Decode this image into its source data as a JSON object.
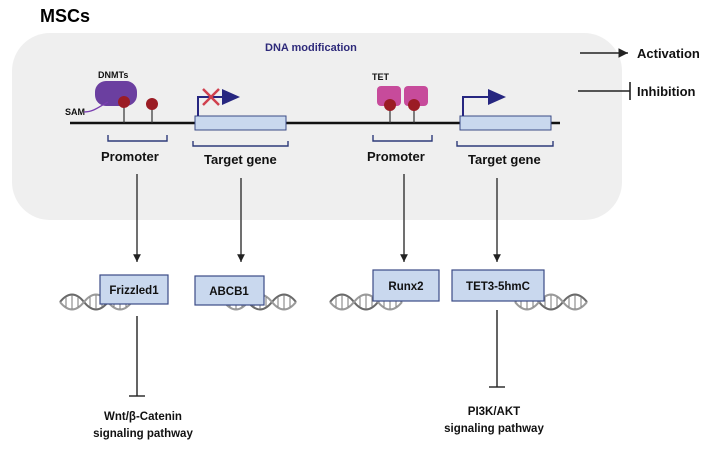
{
  "title": "MSCs",
  "panel": {
    "title": "DNA modification"
  },
  "legend": {
    "activation": "Activation",
    "inhibition": "Inhibition"
  },
  "left_module": {
    "enzyme": "DNMTs",
    "cofactor": "SAM",
    "promoter_label": "Promoter",
    "gene_label": "Target gene",
    "gene_state": "silenced"
  },
  "right_module": {
    "enzyme": "TET",
    "promoter_label": "Promoter",
    "gene_label": "Target gene",
    "gene_state": "active"
  },
  "targets": [
    {
      "label": "Frizzled1"
    },
    {
      "label": "ABCB1"
    },
    {
      "label": "Runx2"
    },
    {
      "label": "TET3-5hmC"
    }
  ],
  "pathways": [
    {
      "line1": "Wnt/β-Catenin",
      "line2": "signaling pathway"
    },
    {
      "line1": "PI3K/AKT",
      "line2": "signaling pathway"
    }
  ],
  "colors": {
    "panel_bg": "#efefef",
    "box_fill": "#c9d8ee",
    "box_stroke": "#3b4b86",
    "dnmt": "#6b3fa0",
    "tet": "#c74b9b",
    "methyl": "#9b1c24",
    "arrow_gene": "#262680",
    "bracket": "#2e3b7a"
  }
}
